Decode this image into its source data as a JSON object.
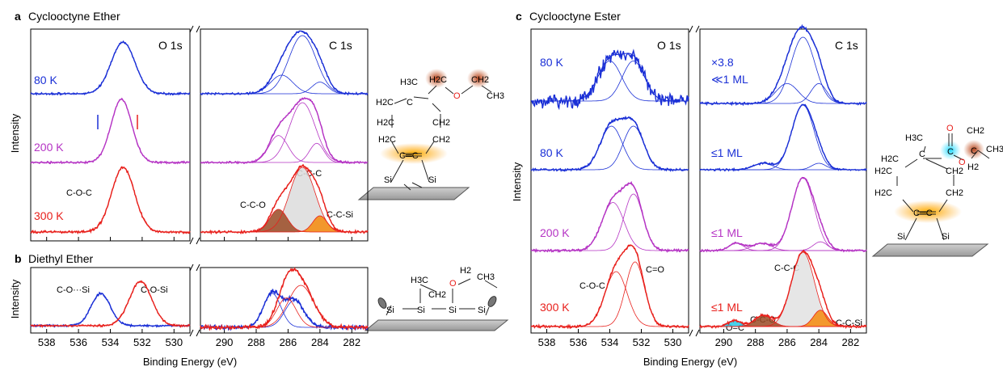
{
  "colors": {
    "blue": "#1a2fd6",
    "magenta": "#b534c4",
    "red": "#e8201c",
    "orange": "#f58a0c",
    "brown": "#9a4a25",
    "cyan": "#27c9e6",
    "gray_fill": "#dedede",
    "surface": "#b4b4b4"
  },
  "panels": {
    "a": {
      "label": "a",
      "title": "Cyclooctyne Ether"
    },
    "b": {
      "label": "b",
      "title": "Diethyl Ether"
    },
    "c": {
      "label": "c",
      "title": "Cyclooctyne Ester"
    }
  },
  "core_levels": {
    "o1s": "O 1s",
    "c1s": "C 1s"
  },
  "axis": {
    "xlabel": "Binding Energy (eV)",
    "ylabel": "Intensity",
    "o_ticks": [
      "538",
      "536",
      "534",
      "532",
      "530"
    ],
    "c_ticks": [
      "290",
      "288",
      "286",
      "284",
      "282"
    ]
  },
  "labels_a": {
    "t80": "80 K",
    "t200": "200 K",
    "t300": "300 K",
    "coc": "C-O-C",
    "ccc": "C-C-C",
    "cco": "C-C-O",
    "ccsi": "C-C-Si"
  },
  "labels_b": {
    "cosi_left": "C-O···Si",
    "cosi_right": "C-O-Si"
  },
  "labels_c": {
    "t80a": "80 K",
    "t80b": "80 K",
    "t200": "200 K",
    "t300": "300 K",
    "scale": "×3.8",
    "ml1": "≪1 ML",
    "ml2": "≤1 ML",
    "ml3": "≤1 ML",
    "ml4": "≤1 ML",
    "coc": "C-O-C",
    "co": "C=O",
    "oc": "O=C",
    "cco": "C-C-O",
    "ccc": "C-C-C",
    "ccsi": "C-C-Si"
  },
  "chem": {
    "h3c": "H3C",
    "h2c": "H2C",
    "ch2": "CH2",
    "ch3": "CH3",
    "h2": "H2",
    "o": "O",
    "c": "C",
    "si": "Si",
    "ce": "C═C"
  },
  "chart_data": [
    {
      "type": "line",
      "id": "a-O1s",
      "xlabel": "Binding Energy (eV)",
      "ylabel": "Intensity",
      "xlim": [
        539,
        529
      ],
      "series": [
        {
          "name": "80 K",
          "peaks": [
            {
              "center": 533.2,
              "height": 1.0,
              "fwhm": 1.6
            }
          ]
        },
        {
          "name": "200 K",
          "peaks": [
            {
              "center": 533.3,
              "height": 1.0,
              "fwhm": 1.4
            }
          ]
        },
        {
          "name": "300 K",
          "peaks": [
            {
              "center": 533.2,
              "height": 1.0,
              "fwhm": 1.6
            }
          ]
        }
      ]
    },
    {
      "type": "line",
      "id": "a-C1s",
      "xlabel": "Binding Energy (eV)",
      "ylabel": "Intensity",
      "xlim": [
        291.5,
        281
      ],
      "series": [
        {
          "name": "80 K",
          "peaks": [
            {
              "center": 285.1,
              "height": 1.0
            },
            {
              "center": 286.3,
              "height": 0.32
            },
            {
              "center": 284.0,
              "height": 0.2
            }
          ]
        },
        {
          "name": "200 K",
          "peaks": [
            {
              "center": 285.1,
              "height": 1.0
            },
            {
              "center": 286.6,
              "height": 0.45
            },
            {
              "center": 284.2,
              "height": 0.32
            }
          ]
        },
        {
          "name": "300 K",
          "peaks": [
            {
              "center": 285.1,
              "height": 1.0,
              "label": "C-C-C"
            },
            {
              "center": 286.6,
              "height": 0.35,
              "label": "C-C-O"
            },
            {
              "center": 284.0,
              "height": 0.25,
              "label": "C-C-Si"
            }
          ]
        }
      ]
    },
    {
      "type": "line",
      "id": "b-O1s",
      "xlim": [
        539,
        529
      ],
      "series": [
        {
          "name": "C-O···Si",
          "peaks": [
            {
              "center": 534.6,
              "height": 1.0
            }
          ]
        },
        {
          "name": "C-O-Si",
          "peaks": [
            {
              "center": 532.1,
              "height": 1.0
            }
          ]
        }
      ]
    },
    {
      "type": "line",
      "id": "b-C1s",
      "xlim": [
        291.5,
        281
      ],
      "series": [
        {
          "name": "blue",
          "peaks": [
            {
              "center": 287.0,
              "height": 1.0
            },
            {
              "center": 285.6,
              "height": 0.8
            }
          ]
        },
        {
          "name": "red",
          "peaks": [
            {
              "center": 285.2,
              "height": 1.0
            },
            {
              "center": 286.1,
              "height": 0.7
            }
          ]
        }
      ]
    },
    {
      "type": "line",
      "id": "c-O1s",
      "xlim": [
        539,
        529
      ],
      "series": [
        {
          "name": "80 K (×3.8)",
          "peaks": [
            {
              "center": 534.0,
              "height": 0.8
            },
            {
              "center": 532.5,
              "height": 0.8
            }
          ]
        },
        {
          "name": "80 K",
          "peaks": [
            {
              "center": 533.9,
              "height": 0.9
            },
            {
              "center": 532.5,
              "height": 0.9
            }
          ]
        },
        {
          "name": "200 K",
          "peaks": [
            {
              "center": 533.8,
              "height": 0.85
            },
            {
              "center": 532.5,
              "height": 1.0
            }
          ]
        },
        {
          "name": "300 K",
          "peaks": [
            {
              "center": 533.6,
              "height": 0.85,
              "label": "C-O-C"
            },
            {
              "center": 532.4,
              "height": 1.0,
              "label": "C=O"
            }
          ]
        }
      ]
    },
    {
      "type": "line",
      "id": "c-C1s",
      "xlim": [
        291.5,
        281
      ],
      "series": [
        {
          "name": "80 K (×3.8)",
          "peaks": [
            {
              "center": 285.0,
              "height": 1.0
            },
            {
              "center": 284.0,
              "height": 0.3
            },
            {
              "center": 286.0,
              "height": 0.3
            }
          ]
        },
        {
          "name": "80 K",
          "peaks": [
            {
              "center": 285.0,
              "height": 1.0
            },
            {
              "center": 287.5,
              "height": 0.1
            },
            {
              "center": 284.0,
              "height": 0.1
            }
          ]
        },
        {
          "name": "200 K",
          "peaks": [
            {
              "center": 285.0,
              "height": 1.0
            },
            {
              "center": 289.2,
              "height": 0.1
            },
            {
              "center": 287.6,
              "height": 0.1
            },
            {
              "center": 283.9,
              "height": 0.12
            }
          ]
        },
        {
          "name": "300 K",
          "peaks": [
            {
              "center": 285.0,
              "height": 1.0,
              "label": "C-C-C"
            },
            {
              "center": 289.3,
              "height": 0.08,
              "label": "O=C"
            },
            {
              "center": 287.5,
              "height": 0.15,
              "label": "C-C-O"
            },
            {
              "center": 283.9,
              "height": 0.22,
              "label": "C-C-Si"
            }
          ]
        }
      ]
    }
  ]
}
